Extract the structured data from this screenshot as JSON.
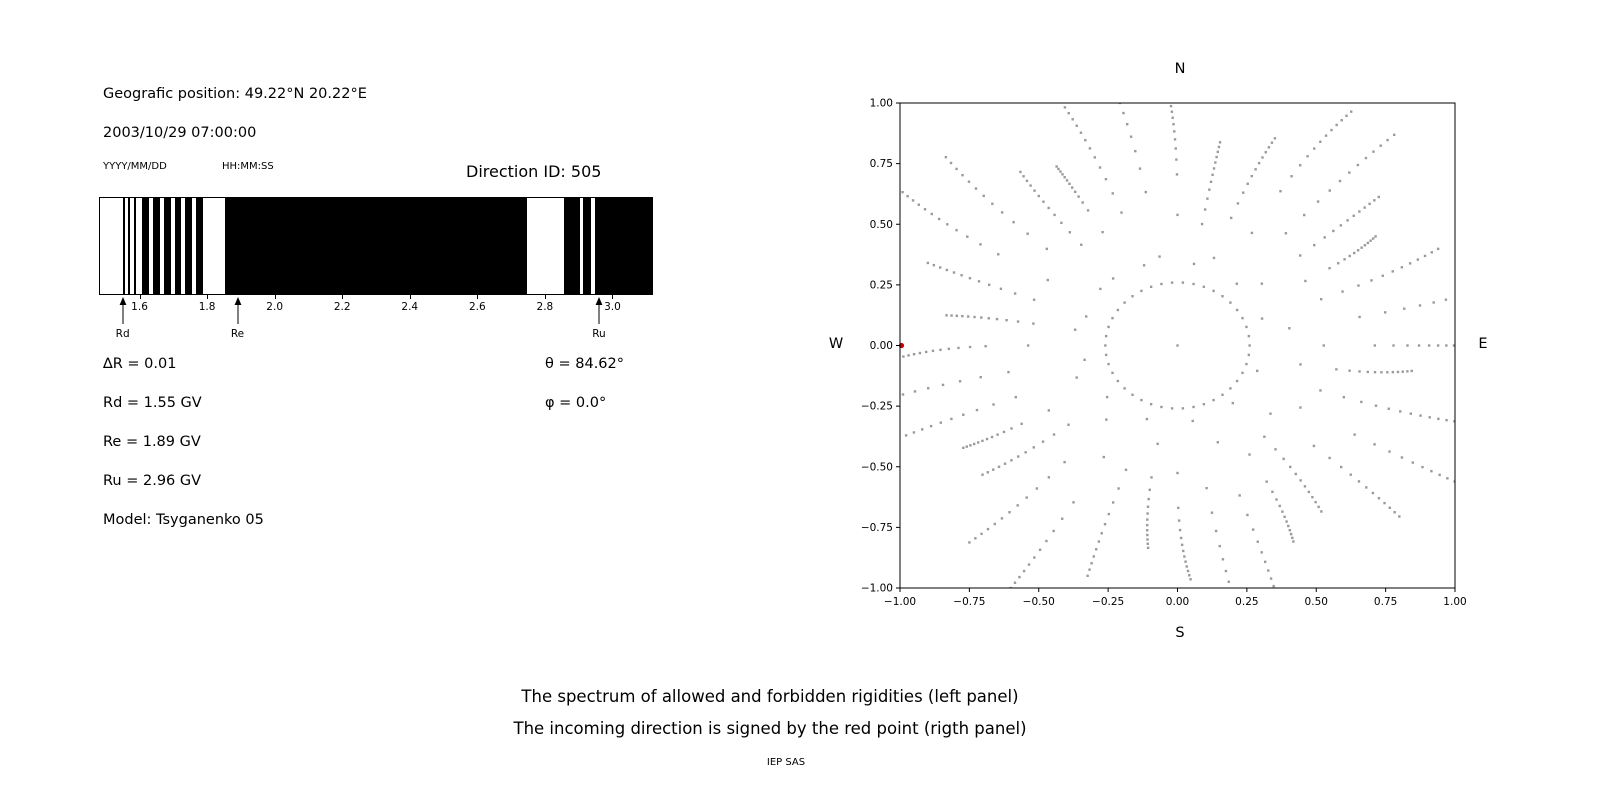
{
  "header": {
    "geo_position": "Geografic position: 49.22°N 20.22°E",
    "datetime": "2003/10/29 07:00:00",
    "date_format_label": "YYYY/MM/DD",
    "time_format_label": "HH:MM:SS",
    "direction_id_label": "Direction ID: 505"
  },
  "cutoff_info": {
    "delta_r": "∆R = 0.01",
    "rd": "Rd = 1.55 GV",
    "re": "Re = 1.89 GV",
    "ru": "Ru = 2.96 GV",
    "model": "Model: Tsyganenko 05",
    "theta": "θ = 84.62°",
    "phi": "φ = 0.0°"
  },
  "compass": {
    "north": "N",
    "south": "S",
    "west": "W",
    "east": "E"
  },
  "caption": {
    "line1": "The spectrum of allowed and forbidden rigidities (left panel)",
    "line2": "The incoming direction is signed by the red point (rigth panel)",
    "credit": "IEP SAS"
  },
  "chart_data": [
    {
      "type": "heatmap",
      "subtype": "binary-rigidity-barcode",
      "description": "Allowed (black) and forbidden (white) rigidity bands between lower cutoff Rd and upper cutoff Ru",
      "xlim": [
        1.48,
        3.12
      ],
      "x_unit": "GV",
      "x_ticks": [
        1.6,
        1.8,
        2.0,
        2.2,
        2.4,
        2.6,
        2.8,
        3.0
      ],
      "x_tick_labels": [
        "1.6",
        "1.8",
        "2.0",
        "2.2",
        "2.4",
        "2.6",
        "2.8",
        "3.0"
      ],
      "band_color": "#000000",
      "background_color": "#ffffff",
      "black_bands": [
        [
          1.548,
          1.554
        ],
        [
          1.564,
          1.57
        ],
        [
          1.58,
          1.586
        ],
        [
          1.606,
          1.626
        ],
        [
          1.638,
          1.658
        ],
        [
          1.67,
          1.69
        ],
        [
          1.702,
          1.722
        ],
        [
          1.734,
          1.754
        ],
        [
          1.766,
          1.786
        ],
        [
          1.85,
          2.75
        ],
        [
          2.86,
          2.905
        ],
        [
          2.915,
          2.94
        ],
        [
          2.95,
          3.12
        ]
      ],
      "markers": [
        {
          "label": "Rd",
          "x": 1.55
        },
        {
          "label": "Re",
          "x": 1.89
        },
        {
          "label": "Ru",
          "x": 2.96
        }
      ],
      "values": {
        "delta_r_gv": 0.01,
        "rd_gv": 1.55,
        "re_gv": 1.89,
        "ru_gv": 2.96,
        "theta_deg": 84.62,
        "phi_deg": 0.0,
        "model": "Tsyganenko 05",
        "direction_id": 505
      }
    },
    {
      "type": "scatter",
      "description": "Asymptotic viewing directions; gray dot spokes radiating from center, inner dotted ring, red point marks the incoming direction",
      "xlim": [
        -1,
        1
      ],
      "ylim": [
        -1,
        1
      ],
      "x_ticks": [
        -1.0,
        -0.75,
        -0.5,
        -0.25,
        0.0,
        0.25,
        0.5,
        0.75,
        1.0
      ],
      "x_tick_labels": [
        "−1.00",
        "−0.75",
        "−0.50",
        "−0.25",
        "0.00",
        "0.25",
        "0.50",
        "0.75",
        "1.00"
      ],
      "y_ticks": [
        1.0,
        0.75,
        0.5,
        0.25,
        0.0,
        -0.25,
        -0.5,
        -0.75,
        -1.0
      ],
      "y_tick_labels": [
        "1.00",
        "0.75",
        "0.50",
        "0.25",
        "0.00",
        "−0.25",
        "−0.50",
        "−0.75",
        "−1.00"
      ],
      "grid": false,
      "dot_color": "#9a9a9a",
      "dot_size_px": 2.4,
      "red_point": {
        "x": -1.0,
        "y": 0.0,
        "color": "#cc0000",
        "radius_px": 2.6
      },
      "center_dot": {
        "x": 0,
        "y": 0
      },
      "ring": {
        "radius": 0.26,
        "points": 42
      },
      "spokes": {
        "count": 36,
        "angle_step_deg": 10,
        "points_per_spoke": 13,
        "r_start_base": 0.42,
        "r_start_var": 0.12,
        "r_end_base": 1.02,
        "r_end_var": 0.18,
        "density_power": 0.45,
        "curve_deg": 3
      }
    }
  ]
}
